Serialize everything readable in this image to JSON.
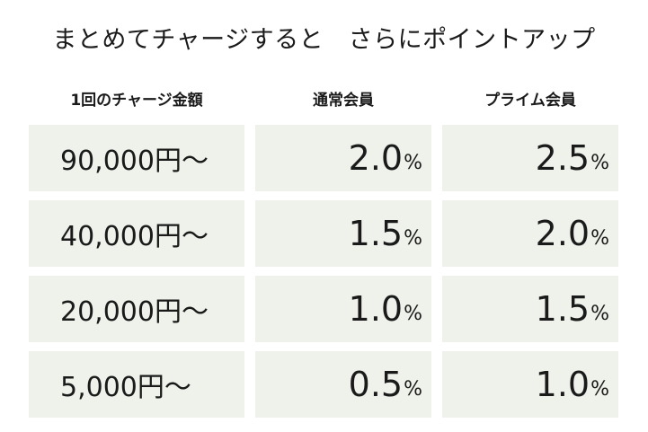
{
  "title": "まとめてチャージすると　さらにポイントアップ",
  "headers": {
    "amount": "1回のチャージ金額",
    "regular": "通常会員",
    "prime": "プライム会員"
  },
  "percent_sign": "%",
  "rows": [
    {
      "amount": "90,000円〜",
      "regular": "2.0",
      "prime": "2.5"
    },
    {
      "amount": "40,000円〜",
      "regular": "1.5",
      "prime": "2.0"
    },
    {
      "amount": "20,000円〜",
      "regular": "1.0",
      "prime": "1.5"
    },
    {
      "amount": "5,000円〜",
      "regular": "0.5",
      "prime": "1.0"
    }
  ],
  "colors": {
    "cell_background": "#eef2ea",
    "text": "#1a1a1a"
  }
}
